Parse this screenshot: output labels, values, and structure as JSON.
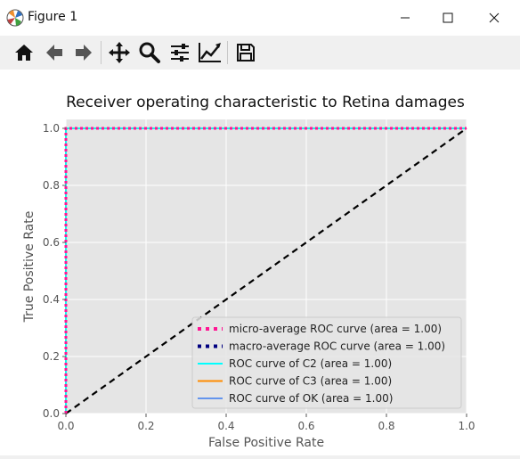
{
  "window": {
    "title": "Figure 1"
  },
  "toolbar": {
    "tools": [
      "home-icon",
      "back-arrow-icon",
      "forward-arrow-icon",
      "pan-icon",
      "zoom-icon",
      "subplots-config-icon",
      "edit-curves-icon",
      "save-icon"
    ]
  },
  "chart_data": {
    "type": "line",
    "title": "Receiver operating characteristic to Retina damages",
    "xlabel": "False Positive Rate",
    "ylabel": "True Positive Rate",
    "xlim": [
      0.0,
      1.0
    ],
    "ylim": [
      0.0,
      1.05
    ],
    "xticks": [
      0.0,
      0.2,
      0.4,
      0.6,
      0.8,
      1.0
    ],
    "yticks": [
      0.0,
      0.2,
      0.4,
      0.6,
      0.8,
      1.0
    ],
    "xtick_labels": [
      "0.0",
      "0.2",
      "0.4",
      "0.6",
      "0.8",
      "1.0"
    ],
    "ytick_labels": [
      "0.0",
      "0.2",
      "0.4",
      "0.6",
      "0.8",
      "1.0"
    ],
    "grid": true,
    "legend_position": "lower-right",
    "series": [
      {
        "label": "micro-average ROC curve (area = 1.00)",
        "color": "#ff1493",
        "dash": "dotted",
        "x": [
          0,
          0,
          1
        ],
        "y": [
          0,
          1,
          1
        ]
      },
      {
        "label": "macro-average ROC curve (area = 1.00)",
        "color": "#000080",
        "dash": "dotted",
        "x": [
          0,
          0,
          1
        ],
        "y": [
          0,
          1,
          1
        ]
      },
      {
        "label": "ROC curve of C2 (area = 1.00)",
        "color": "#00ffff",
        "dash": "solid",
        "x": [
          0,
          0,
          1
        ],
        "y": [
          0,
          1,
          1
        ]
      },
      {
        "label": "ROC curve of C3 (area = 1.00)",
        "color": "#ff8c00",
        "dash": "solid",
        "x": [
          0,
          0,
          1
        ],
        "y": [
          0,
          1,
          1
        ]
      },
      {
        "label": "ROC curve of OK (area = 1.00)",
        "color": "#6495ed",
        "dash": "solid",
        "x": [
          0,
          0,
          1
        ],
        "y": [
          0,
          1,
          1
        ]
      }
    ],
    "reference_line": {
      "color": "#000000",
      "dash": "dashed",
      "x": [
        0,
        1
      ],
      "y": [
        0,
        1
      ]
    }
  }
}
